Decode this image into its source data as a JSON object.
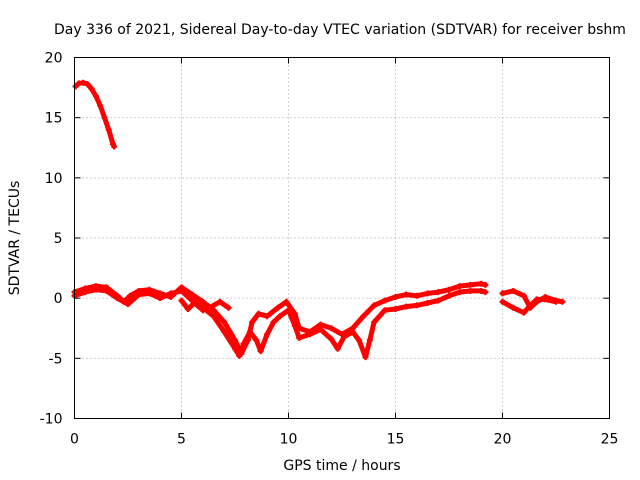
{
  "chart_data": {
    "type": "scatter",
    "title": "Day 336 of 2021, Sidereal Day-to-day VTEC variation (SDTVAR) for receiver bshm",
    "xlabel": "GPS time / hours",
    "ylabel": "SDTVAR / TECUs",
    "xlim": [
      0,
      25
    ],
    "ylim": [
      -10,
      20
    ],
    "xticks": [
      0,
      5,
      10,
      15,
      20,
      25
    ],
    "yticks": [
      -10,
      -5,
      0,
      5,
      10,
      15,
      20
    ],
    "grid": true,
    "legend": "none",
    "series": [
      {
        "name": "bshm",
        "color": "#ff0000",
        "segments": [
          [
            [
              0.05,
              17.6
            ],
            [
              0.2,
              17.85
            ],
            [
              0.4,
              17.9
            ],
            [
              0.6,
              17.8
            ],
            [
              0.8,
              17.4
            ],
            [
              1.0,
              16.8
            ],
            [
              1.2,
              16.0
            ],
            [
              1.4,
              15.0
            ],
            [
              1.6,
              14.0
            ],
            [
              1.8,
              12.8
            ],
            [
              1.85,
              12.6
            ]
          ],
          [
            [
              0.0,
              0.5
            ],
            [
              0.5,
              0.8
            ],
            [
              1.0,
              1.0
            ],
            [
              1.5,
              0.9
            ],
            [
              2.0,
              0.2
            ],
            [
              2.3,
              -0.3
            ],
            [
              2.6,
              0.2
            ],
            [
              3.0,
              0.6
            ],
            [
              3.5,
              0.7
            ],
            [
              4.0,
              0.4
            ],
            [
              4.5,
              0.1
            ],
            [
              5.0,
              0.9
            ],
            [
              5.5,
              0.3
            ],
            [
              6.0,
              -0.3
            ],
            [
              6.5,
              -1.0
            ],
            [
              7.0,
              -2.0
            ],
            [
              7.5,
              -3.5
            ],
            [
              7.8,
              -4.6
            ],
            [
              8.1,
              -3.5
            ],
            [
              8.3,
              -2.0
            ],
            [
              8.6,
              -1.3
            ],
            [
              9.0,
              -1.5
            ],
            [
              9.5,
              -0.8
            ],
            [
              9.9,
              -0.3
            ],
            [
              10.3,
              -1.3
            ],
            [
              10.5,
              -2.5
            ],
            [
              11.0,
              -2.8
            ],
            [
              11.5,
              -2.2
            ],
            [
              12.0,
              -2.5
            ],
            [
              12.5,
              -3.0
            ],
            [
              13.0,
              -2.5
            ],
            [
              13.5,
              -1.5
            ],
            [
              14.0,
              -0.6
            ],
            [
              14.5,
              -0.2
            ],
            [
              15.0,
              0.1
            ],
            [
              15.5,
              0.3
            ],
            [
              16.0,
              0.2
            ],
            [
              16.5,
              0.4
            ],
            [
              17.0,
              0.5
            ],
            [
              17.5,
              0.7
            ],
            [
              18.0,
              1.0
            ],
            [
              18.5,
              1.1
            ],
            [
              19.0,
              1.2
            ],
            [
              19.2,
              1.1
            ]
          ],
          [
            [
              0.0,
              0.2
            ],
            [
              0.5,
              0.5
            ],
            [
              1.0,
              0.7
            ],
            [
              1.5,
              0.6
            ],
            [
              2.0,
              0.0
            ],
            [
              2.5,
              -0.5
            ],
            [
              3.0,
              0.3
            ],
            [
              3.5,
              0.4
            ],
            [
              4.0,
              0.0
            ],
            [
              4.5,
              0.4
            ],
            [
              5.0,
              0.6
            ],
            [
              5.5,
              -0.2
            ],
            [
              6.0,
              -0.8
            ],
            [
              6.5,
              -1.5
            ],
            [
              7.0,
              -2.8
            ],
            [
              7.5,
              -4.2
            ],
            [
              7.7,
              -4.8
            ],
            [
              7.9,
              -3.8
            ],
            [
              8.2,
              -2.8
            ],
            [
              8.5,
              -3.5
            ],
            [
              8.7,
              -4.4
            ],
            [
              9.0,
              -3.0
            ],
            [
              9.3,
              -2.0
            ],
            [
              9.6,
              -1.5
            ],
            [
              10.0,
              -1.0
            ],
            [
              10.3,
              -2.3
            ],
            [
              10.5,
              -3.3
            ],
            [
              11.0,
              -3.0
            ],
            [
              11.5,
              -2.6
            ],
            [
              12.0,
              -3.4
            ],
            [
              12.3,
              -4.2
            ],
            [
              12.6,
              -3.2
            ],
            [
              13.0,
              -2.8
            ],
            [
              13.3,
              -3.5
            ],
            [
              13.6,
              -4.9
            ],
            [
              13.8,
              -3.5
            ],
            [
              14.0,
              -2.0
            ],
            [
              14.5,
              -1.0
            ],
            [
              15.0,
              -0.9
            ],
            [
              15.5,
              -0.7
            ],
            [
              16.0,
              -0.6
            ],
            [
              16.5,
              -0.4
            ],
            [
              17.0,
              -0.2
            ],
            [
              17.5,
              0.2
            ],
            [
              18.0,
              0.5
            ],
            [
              18.5,
              0.6
            ],
            [
              19.0,
              0.6
            ],
            [
              19.2,
              0.5
            ]
          ],
          [
            [
              5.0,
              -0.2
            ],
            [
              5.3,
              -0.9
            ],
            [
              5.6,
              -0.4
            ],
            [
              6.0,
              -1.0
            ],
            [
              6.3,
              -0.8
            ],
            [
              6.8,
              -0.3
            ],
            [
              7.2,
              -0.8
            ]
          ],
          [
            [
              20.0,
              0.4
            ],
            [
              20.5,
              0.6
            ],
            [
              21.0,
              0.2
            ],
            [
              21.3,
              -0.8
            ],
            [
              21.6,
              -0.3
            ],
            [
              22.0,
              0.1
            ],
            [
              22.5,
              -0.2
            ],
            [
              22.8,
              -0.3
            ]
          ],
          [
            [
              20.0,
              -0.3
            ],
            [
              20.5,
              -0.8
            ],
            [
              21.0,
              -1.2
            ],
            [
              21.3,
              -0.6
            ],
            [
              21.6,
              -0.1
            ],
            [
              22.0,
              -0.1
            ],
            [
              22.5,
              -0.3
            ]
          ]
        ]
      }
    ]
  }
}
